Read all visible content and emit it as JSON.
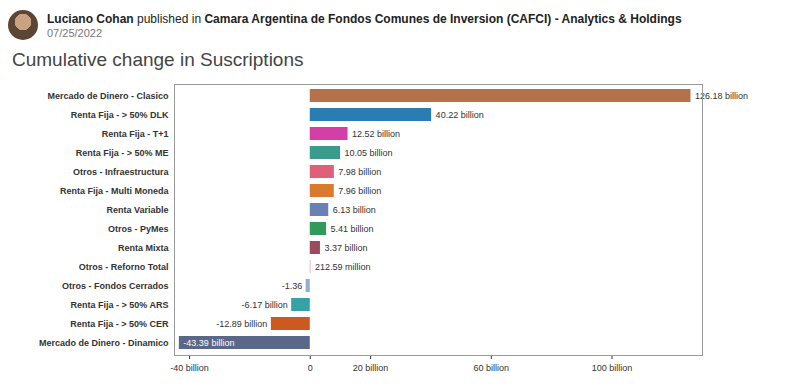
{
  "header": {
    "author": "Luciano Cohan",
    "verb": "published in",
    "publication": "Camara Argentina de Fondos Comunes de Inversion (CAFCI) - Analytics & Holdings",
    "date": "07/25/2022"
  },
  "chart_data": {
    "type": "bar",
    "orientation": "horizontal",
    "title": "Cumulative change in Suscriptions",
    "categories": [
      "Mercado de Dinero - Clasico",
      "Renta Fija - > 50% DLK",
      "Renta Fija - T+1",
      "Renta Fija - > 50% ME",
      "Otros - Infraestructura",
      "Renta Fija - Multi Moneda",
      "Renta Variable",
      "Otros - PyMes",
      "Renta Mixta",
      "Otros - Reforno Total",
      "Otros - Fondos Cerrados",
      "Renta Fija - > 50% ARS",
      "Renta Fija - > 50% CER",
      "Mercado de Dinero - Dinamico"
    ],
    "values": [
      126.18,
      40.22,
      12.52,
      10.05,
      7.98,
      7.96,
      6.13,
      5.41,
      3.37,
      0.21259,
      -1.36,
      -6.17,
      -12.89,
      -43.39
    ],
    "value_labels": [
      "126.18 billion",
      "40.22 billion",
      "12.52 billion",
      "10.05 billion",
      "7.98 billion",
      "7.96 billion",
      "6.13 billion",
      "5.41 billion",
      "3.37 billion",
      "212.59 million",
      "-1.36",
      "-6.17 billion",
      "-12.89 billion",
      "-43.39 billion"
    ],
    "colors": [
      "#b5714a",
      "#2a7db3",
      "#d23fa6",
      "#3a9a8c",
      "#e0607a",
      "#d97b2f",
      "#6b80b3",
      "#2f9a5a",
      "#9c4a5e",
      "#e58fa8",
      "#8fb0d0",
      "#35a3a3",
      "#cc5a20",
      "#5a6788"
    ],
    "xlim": [
      -45,
      130
    ],
    "xticks": [
      {
        "value": -40,
        "label": "-40 billion"
      },
      0,
      {
        "value": 20,
        "label": "20 billion"
      },
      {
        "value": 60,
        "label": "60 billion"
      },
      {
        "value": 100,
        "label": "100 billion"
      }
    ],
    "data_labels": true,
    "grid": false
  }
}
